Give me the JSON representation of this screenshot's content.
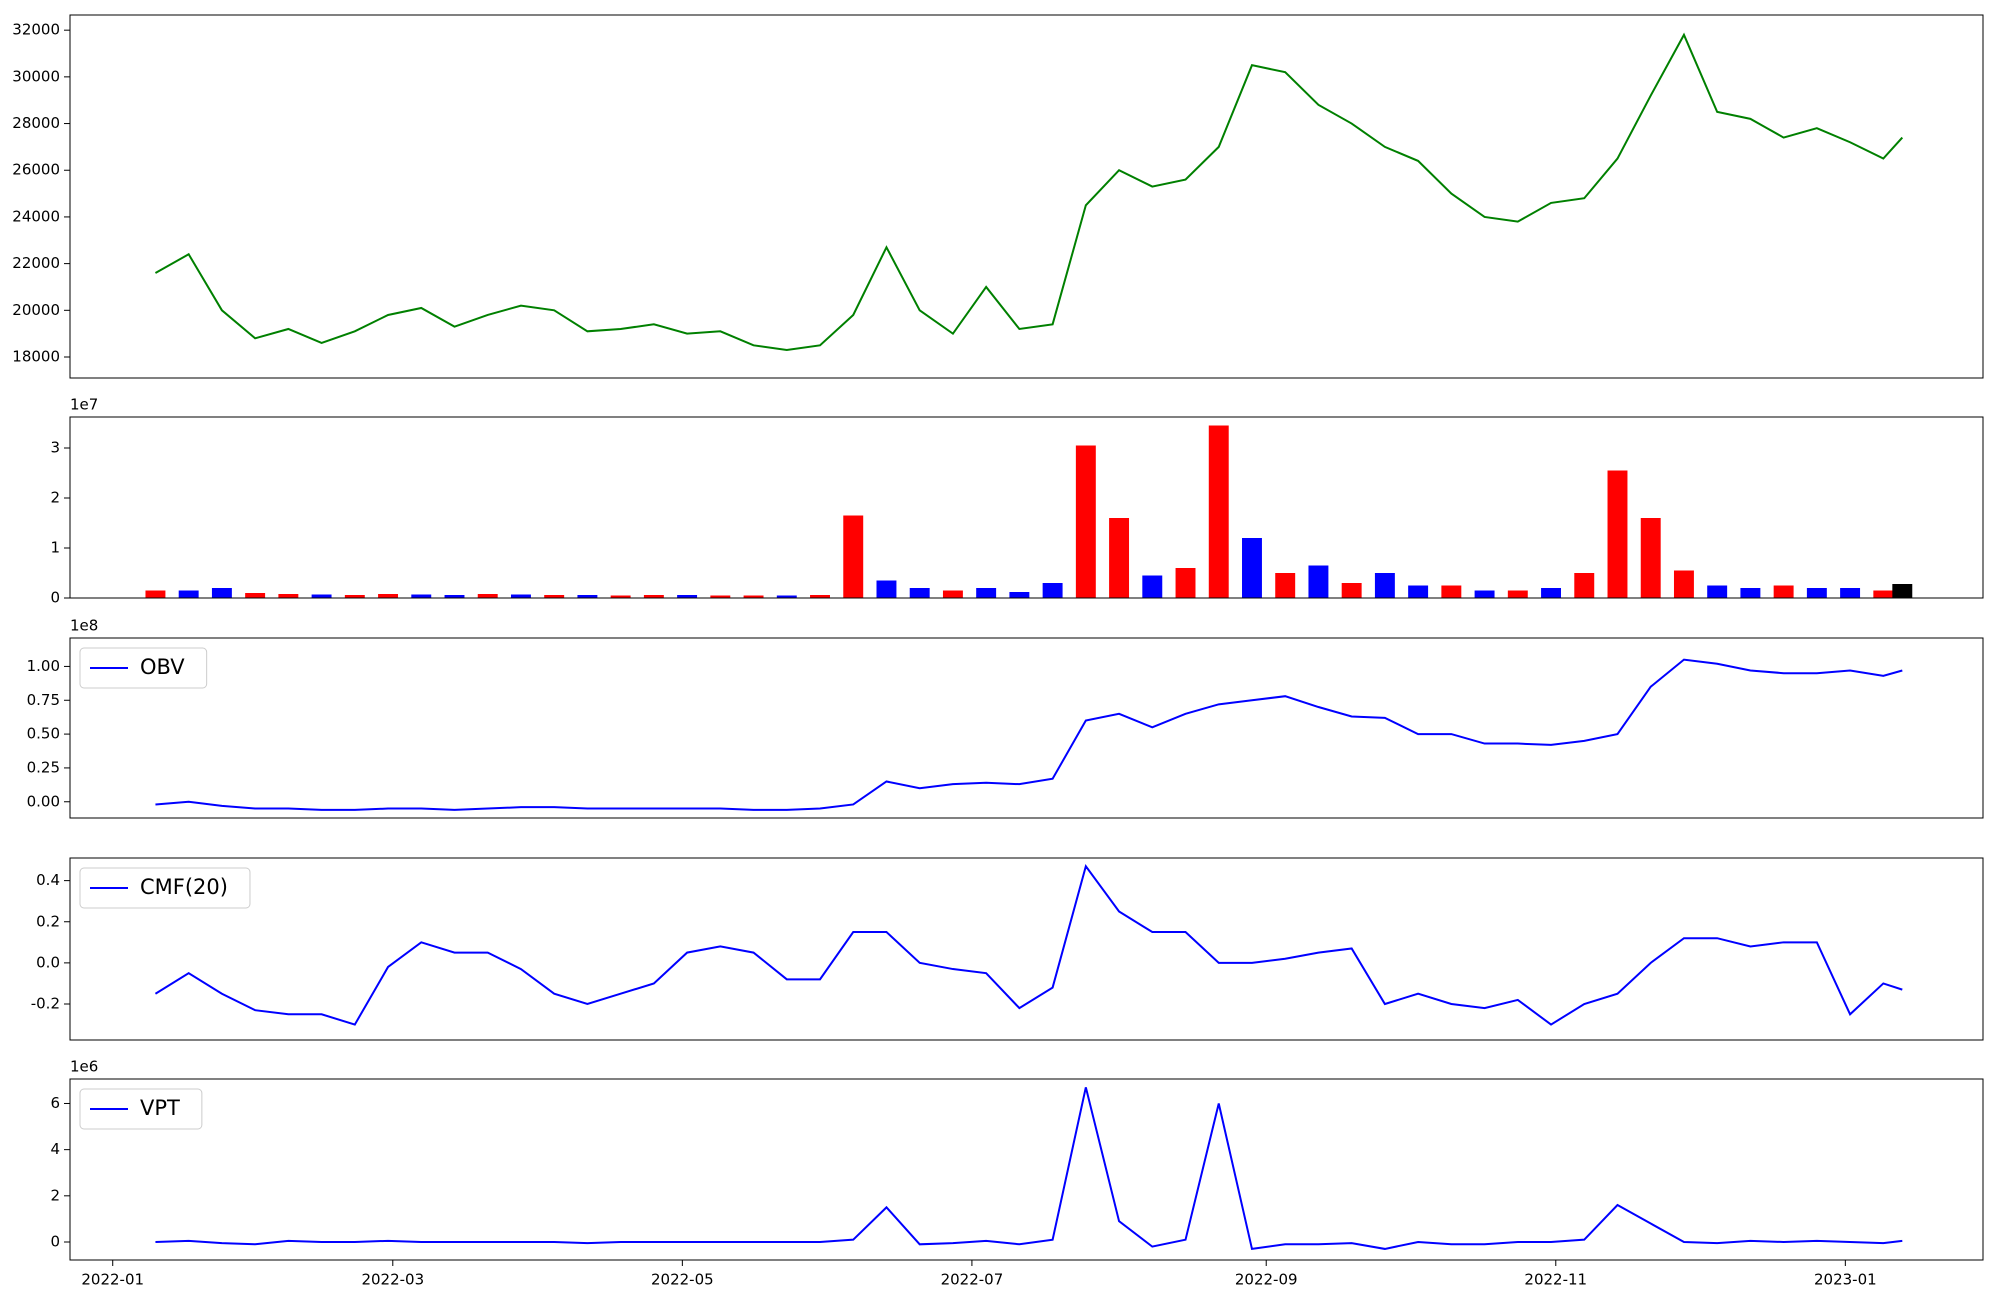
{
  "chart_data": [
    {
      "type": "line",
      "x": [
        "2022-01-10",
        "2022-01-17",
        "2022-01-24",
        "2022-01-31",
        "2022-02-07",
        "2022-02-14",
        "2022-02-21",
        "2022-02-28",
        "2022-03-07",
        "2022-03-14",
        "2022-03-21",
        "2022-03-28",
        "2022-04-04",
        "2022-04-11",
        "2022-04-18",
        "2022-04-25",
        "2022-05-02",
        "2022-05-09",
        "2022-05-16",
        "2022-05-23",
        "2022-05-30",
        "2022-06-06",
        "2022-06-13",
        "2022-06-20",
        "2022-06-27",
        "2022-07-04",
        "2022-07-11",
        "2022-07-18",
        "2022-07-25",
        "2022-08-01",
        "2022-08-08",
        "2022-08-15",
        "2022-08-22",
        "2022-08-29",
        "2022-09-05",
        "2022-09-12",
        "2022-09-19",
        "2022-09-26",
        "2022-10-03",
        "2022-10-10",
        "2022-10-17",
        "2022-10-24",
        "2022-10-31",
        "2022-11-07",
        "2022-11-14",
        "2022-11-21",
        "2022-11-28",
        "2022-12-05",
        "2022-12-12",
        "2022-12-19",
        "2022-12-26",
        "2023-01-02",
        "2023-01-09",
        "2023-01-13"
      ],
      "series": [
        {
          "color": "#008000",
          "values": [
            21600,
            22400,
            20000,
            18800,
            19200,
            18600,
            19100,
            19800,
            20100,
            19300,
            19800,
            20200,
            20000,
            19100,
            19200,
            19400,
            19000,
            19100,
            18500,
            18300,
            18500,
            19800,
            22700,
            20000,
            19000,
            21000,
            19200,
            19400,
            24500,
            26000,
            25300,
            25600,
            27000,
            30500,
            30200,
            28800,
            28000,
            27000,
            26400,
            25000,
            24000,
            23800,
            24600,
            24800,
            26500,
            29200,
            31800,
            28500,
            28200,
            27400,
            27800,
            27200,
            26500,
            27400
          ]
        }
      ],
      "xlim": [
        "2021-12-23",
        "2023-01-30"
      ],
      "ylim": [
        17100,
        32650
      ],
      "yticks": [
        18000,
        20000,
        22000,
        24000,
        26000,
        28000,
        30000,
        32000
      ]
    },
    {
      "type": "bar",
      "x": [
        "2022-01-10",
        "2022-01-17",
        "2022-01-24",
        "2022-01-31",
        "2022-02-07",
        "2022-02-14",
        "2022-02-21",
        "2022-02-28",
        "2022-03-07",
        "2022-03-14",
        "2022-03-21",
        "2022-03-28",
        "2022-04-04",
        "2022-04-11",
        "2022-04-18",
        "2022-04-25",
        "2022-05-02",
        "2022-05-09",
        "2022-05-16",
        "2022-05-23",
        "2022-05-30",
        "2022-06-06",
        "2022-06-13",
        "2022-06-20",
        "2022-06-27",
        "2022-07-04",
        "2022-07-11",
        "2022-07-18",
        "2022-07-25",
        "2022-08-01",
        "2022-08-08",
        "2022-08-15",
        "2022-08-22",
        "2022-08-29",
        "2022-09-05",
        "2022-09-12",
        "2022-09-19",
        "2022-09-26",
        "2022-10-03",
        "2022-10-10",
        "2022-10-17",
        "2022-10-24",
        "2022-10-31",
        "2022-11-07",
        "2022-11-14",
        "2022-11-21",
        "2022-11-28",
        "2022-12-05",
        "2022-12-12",
        "2022-12-19",
        "2022-12-26",
        "2023-01-02",
        "2023-01-09",
        "2023-01-13"
      ],
      "values": [
        0.15,
        0.15,
        0.2,
        0.1,
        0.08,
        0.07,
        0.06,
        0.08,
        0.07,
        0.06,
        0.08,
        0.07,
        0.06,
        0.06,
        0.05,
        0.06,
        0.06,
        0.05,
        0.05,
        0.05,
        0.06,
        1.65,
        0.35,
        0.2,
        0.15,
        0.2,
        0.12,
        0.3,
        3.05,
        1.6,
        0.45,
        0.6,
        3.45,
        1.2,
        0.5,
        0.65,
        0.3,
        0.5,
        0.25,
        0.25,
        0.15,
        0.15,
        0.2,
        0.5,
        2.55,
        1.6,
        0.55,
        0.25,
        0.2,
        0.25,
        0.2,
        0.2,
        0.15,
        0.28
      ],
      "colors": [
        "#ff0000",
        "#0000ff",
        "#0000ff",
        "#ff0000",
        "#ff0000",
        "#0000ff",
        "#ff0000",
        "#ff0000",
        "#0000ff",
        "#0000ff",
        "#ff0000",
        "#0000ff",
        "#ff0000",
        "#0000ff",
        "#ff0000",
        "#ff0000",
        "#0000ff",
        "#ff0000",
        "#ff0000",
        "#0000ff",
        "#ff0000",
        "#ff0000",
        "#0000ff",
        "#0000ff",
        "#ff0000",
        "#0000ff",
        "#0000ff",
        "#0000ff",
        "#ff0000",
        "#ff0000",
        "#0000ff",
        "#ff0000",
        "#ff0000",
        "#0000ff",
        "#ff0000",
        "#0000ff",
        "#ff0000",
        "#0000ff",
        "#0000ff",
        "#ff0000",
        "#0000ff",
        "#ff0000",
        "#0000ff",
        "#ff0000",
        "#ff0000",
        "#ff0000",
        "#ff0000",
        "#0000ff",
        "#0000ff",
        "#ff0000",
        "#0000ff",
        "#0000ff",
        "#ff0000",
        "#000000"
      ],
      "xlim": [
        "2021-12-23",
        "2023-01-30"
      ],
      "ylim": [
        0,
        3.62
      ],
      "yticks": [
        0,
        1,
        2,
        3
      ],
      "offset_label": "1e7"
    },
    {
      "type": "line",
      "x": [
        "2022-01-10",
        "2022-01-17",
        "2022-01-24",
        "2022-01-31",
        "2022-02-07",
        "2022-02-14",
        "2022-02-21",
        "2022-02-28",
        "2022-03-07",
        "2022-03-14",
        "2022-03-21",
        "2022-03-28",
        "2022-04-04",
        "2022-04-11",
        "2022-04-18",
        "2022-04-25",
        "2022-05-02",
        "2022-05-09",
        "2022-05-16",
        "2022-05-23",
        "2022-05-30",
        "2022-06-06",
        "2022-06-13",
        "2022-06-20",
        "2022-06-27",
        "2022-07-04",
        "2022-07-11",
        "2022-07-18",
        "2022-07-25",
        "2022-08-01",
        "2022-08-08",
        "2022-08-15",
        "2022-08-22",
        "2022-08-29",
        "2022-09-05",
        "2022-09-12",
        "2022-09-19",
        "2022-09-26",
        "2022-10-03",
        "2022-10-10",
        "2022-10-17",
        "2022-10-24",
        "2022-10-31",
        "2022-11-07",
        "2022-11-14",
        "2022-11-21",
        "2022-11-28",
        "2022-12-05",
        "2022-12-12",
        "2022-12-19",
        "2022-12-26",
        "2023-01-02",
        "2023-01-09",
        "2023-01-13"
      ],
      "series": [
        {
          "name": "OBV",
          "color": "#0000ff",
          "values": [
            -0.02,
            0.0,
            -0.03,
            -0.05,
            -0.05,
            -0.06,
            -0.06,
            -0.05,
            -0.05,
            -0.06,
            -0.05,
            -0.04,
            -0.04,
            -0.05,
            -0.05,
            -0.05,
            -0.05,
            -0.05,
            -0.06,
            -0.06,
            -0.05,
            -0.02,
            0.15,
            0.1,
            0.13,
            0.14,
            0.13,
            0.17,
            0.6,
            0.65,
            0.55,
            0.65,
            0.72,
            0.75,
            0.78,
            0.7,
            0.63,
            0.62,
            0.5,
            0.5,
            0.43,
            0.43,
            0.42,
            0.45,
            0.5,
            0.85,
            1.05,
            1.02,
            0.97,
            0.95,
            0.95,
            0.97,
            0.93,
            0.97
          ]
        }
      ],
      "xlim": [
        "2021-12-23",
        "2023-01-30"
      ],
      "ylim": [
        -0.12,
        1.21
      ],
      "yticks": [
        {
          "value": 0,
          "label": "0.00"
        },
        {
          "value": 0.25,
          "label": "0.25"
        },
        {
          "value": 0.5,
          "label": "0.50"
        },
        {
          "value": 0.75,
          "label": "0.75"
        },
        {
          "value": 1,
          "label": "1.00"
        }
      ],
      "offset_label": "1e8",
      "legend": "upper left"
    },
    {
      "type": "line",
      "x": [
        "2022-01-10",
        "2022-01-17",
        "2022-01-24",
        "2022-01-31",
        "2022-02-07",
        "2022-02-14",
        "2022-02-21",
        "2022-02-28",
        "2022-03-07",
        "2022-03-14",
        "2022-03-21",
        "2022-03-28",
        "2022-04-04",
        "2022-04-11",
        "2022-04-18",
        "2022-04-25",
        "2022-05-02",
        "2022-05-09",
        "2022-05-16",
        "2022-05-23",
        "2022-05-30",
        "2022-06-06",
        "2022-06-13",
        "2022-06-20",
        "2022-06-27",
        "2022-07-04",
        "2022-07-11",
        "2022-07-18",
        "2022-07-25",
        "2022-08-01",
        "2022-08-08",
        "2022-08-15",
        "2022-08-22",
        "2022-08-29",
        "2022-09-05",
        "2022-09-12",
        "2022-09-19",
        "2022-09-26",
        "2022-10-03",
        "2022-10-10",
        "2022-10-17",
        "2022-10-24",
        "2022-10-31",
        "2022-11-07",
        "2022-11-14",
        "2022-11-21",
        "2022-11-28",
        "2022-12-05",
        "2022-12-12",
        "2022-12-19",
        "2022-12-26",
        "2023-01-02",
        "2023-01-09",
        "2023-01-13"
      ],
      "series": [
        {
          "name": "CMF(20)",
          "color": "#0000ff",
          "values": [
            -0.15,
            -0.05,
            -0.15,
            -0.23,
            -0.25,
            -0.25,
            -0.3,
            -0.02,
            0.1,
            0.05,
            0.05,
            -0.03,
            -0.15,
            -0.2,
            -0.15,
            -0.1,
            0.05,
            0.08,
            0.05,
            -0.08,
            -0.08,
            0.15,
            0.15,
            0.0,
            -0.03,
            -0.05,
            -0.22,
            -0.12,
            0.47,
            0.25,
            0.15,
            0.15,
            0.0,
            0.0,
            0.02,
            0.05,
            0.07,
            -0.2,
            -0.15,
            -0.2,
            -0.22,
            -0.18,
            -0.3,
            -0.2,
            -0.15,
            0.0,
            0.12,
            0.12,
            0.08,
            0.1,
            0.1,
            -0.25,
            -0.1,
            -0.13
          ]
        }
      ],
      "xlim": [
        "2021-12-23",
        "2023-01-30"
      ],
      "ylim": [
        -0.375,
        0.51
      ],
      "yticks": [
        -0.2,
        {
          "value": 0,
          "label": "0.0"
        },
        0.2,
        0.4
      ],
      "legend": "upper left"
    },
    {
      "type": "line",
      "x": [
        "2022-01-10",
        "2022-01-17",
        "2022-01-24",
        "2022-01-31",
        "2022-02-07",
        "2022-02-14",
        "2022-02-21",
        "2022-02-28",
        "2022-03-07",
        "2022-03-14",
        "2022-03-21",
        "2022-03-28",
        "2022-04-04",
        "2022-04-11",
        "2022-04-18",
        "2022-04-25",
        "2022-05-02",
        "2022-05-09",
        "2022-05-16",
        "2022-05-23",
        "2022-05-30",
        "2022-06-06",
        "2022-06-13",
        "2022-06-20",
        "2022-06-27",
        "2022-07-04",
        "2022-07-11",
        "2022-07-18",
        "2022-07-25",
        "2022-08-01",
        "2022-08-08",
        "2022-08-15",
        "2022-08-22",
        "2022-08-29",
        "2022-09-05",
        "2022-09-12",
        "2022-09-19",
        "2022-09-26",
        "2022-10-03",
        "2022-10-10",
        "2022-10-17",
        "2022-10-24",
        "2022-10-31",
        "2022-11-07",
        "2022-11-14",
        "2022-11-21",
        "2022-11-28",
        "2022-12-05",
        "2022-12-12",
        "2022-12-19",
        "2022-12-26",
        "2023-01-02",
        "2023-01-09",
        "2023-01-13"
      ],
      "series": [
        {
          "name": "VPT",
          "color": "#0000ff",
          "values": [
            0.0,
            0.05,
            -0.05,
            -0.1,
            0.05,
            0.0,
            0.0,
            0.05,
            0.0,
            0.0,
            0.0,
            0.0,
            0.0,
            -0.05,
            0.0,
            0.0,
            0.0,
            0.0,
            0.0,
            0.0,
            0.0,
            0.1,
            1.5,
            -0.1,
            -0.05,
            0.05,
            -0.1,
            0.1,
            6.7,
            0.9,
            -0.2,
            0.1,
            6.0,
            -0.3,
            -0.1,
            -0.1,
            -0.05,
            -0.3,
            0.0,
            -0.1,
            -0.1,
            0.0,
            0.0,
            0.1,
            1.6,
            0.8,
            0.0,
            -0.05,
            0.05,
            0.0,
            0.05,
            0.0,
            -0.05,
            0.05
          ]
        }
      ],
      "xlim": [
        "2021-12-23",
        "2023-01-30"
      ],
      "ylim": [
        -0.78,
        7.06
      ],
      "yticks": [
        0,
        2,
        4,
        6
      ],
      "xticks": [
        "2022-01",
        "2022-03",
        "2022-05",
        "2022-07",
        "2022-09",
        "2022-11",
        "2023-01"
      ],
      "offset_label": "1e6",
      "legend": "upper left"
    }
  ]
}
